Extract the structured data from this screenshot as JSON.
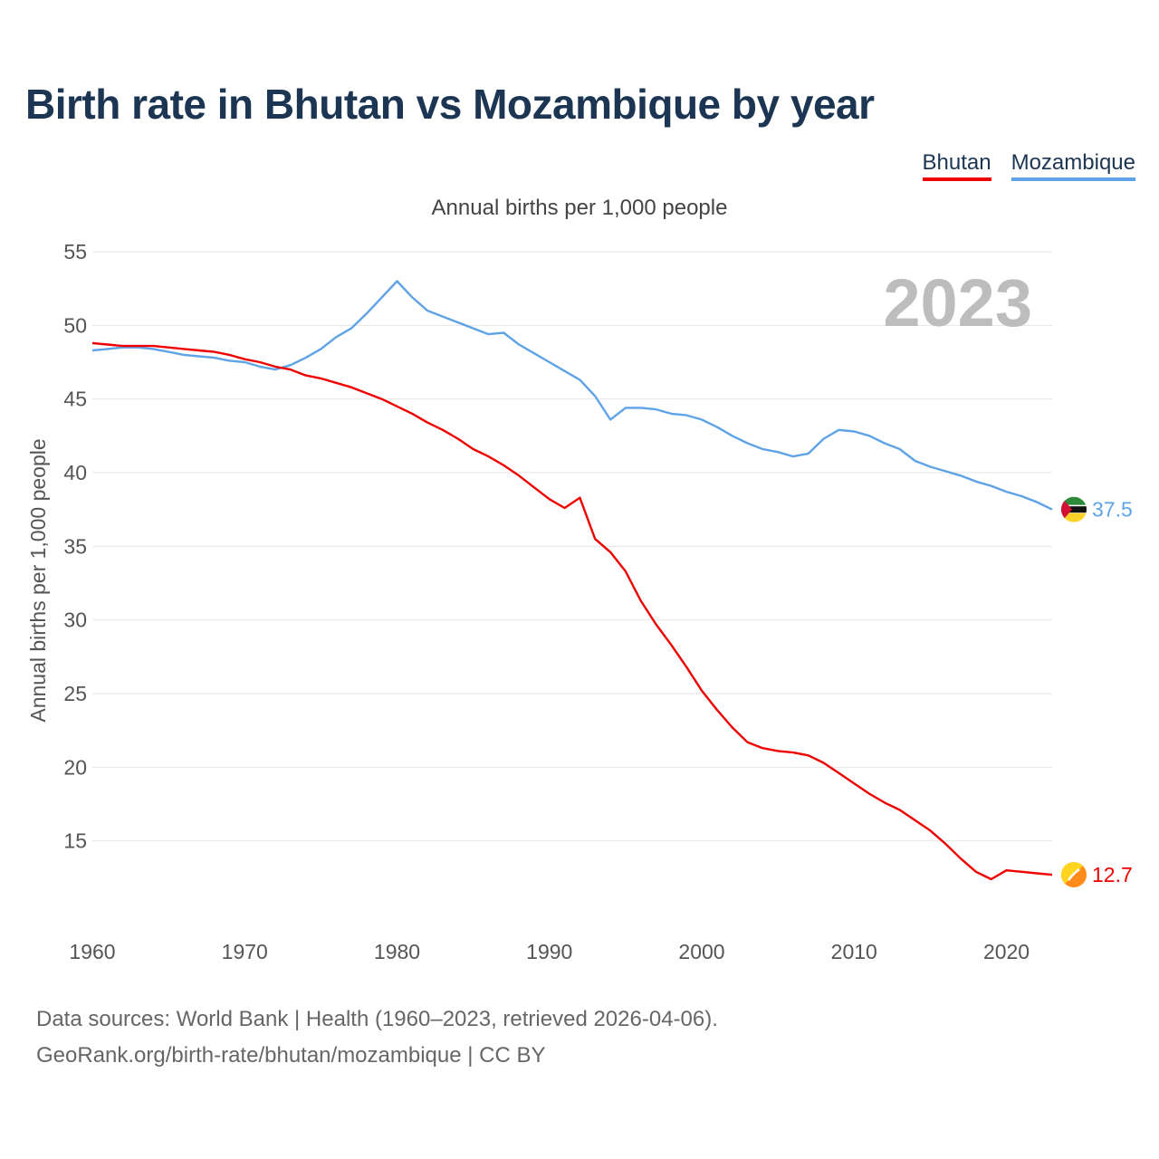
{
  "title": "Birth rate in Bhutan vs Mozambique by year",
  "subtitle": "Annual births per 1,000 people",
  "source": {
    "line1": "Data sources: World Bank | Health (1960–2023, retrieved 2026-04-06).",
    "line2": "GeoRank.org/birth-rate/bhutan/mozambique | CC BY"
  },
  "chart_data": {
    "type": "line",
    "title": "Birth rate in Bhutan vs Mozambique by year",
    "subtitle": "Annual births per 1,000 people",
    "ylabel": "Annual births per 1,000 people",
    "xlabel": "",
    "xlim": [
      1960,
      2023
    ],
    "ylim": [
      10,
      55
    ],
    "yticks": [
      15,
      20,
      25,
      30,
      35,
      40,
      45,
      50,
      55
    ],
    "xticks": [
      1960,
      1970,
      1980,
      1990,
      2000,
      2010,
      2020
    ],
    "year_overlay": "2023",
    "grid": true,
    "legend_position": "top-right",
    "x": [
      1960,
      1961,
      1962,
      1963,
      1964,
      1965,
      1966,
      1967,
      1968,
      1969,
      1970,
      1971,
      1972,
      1973,
      1974,
      1975,
      1976,
      1977,
      1978,
      1979,
      1980,
      1981,
      1982,
      1983,
      1984,
      1985,
      1986,
      1987,
      1988,
      1989,
      1990,
      1991,
      1992,
      1993,
      1994,
      1995,
      1996,
      1997,
      1998,
      1999,
      2000,
      2001,
      2002,
      2003,
      2004,
      2005,
      2006,
      2007,
      2008,
      2009,
      2010,
      2011,
      2012,
      2013,
      2014,
      2015,
      2016,
      2017,
      2018,
      2019,
      2020,
      2021,
      2022,
      2023
    ],
    "series": [
      {
        "name": "Bhutan",
        "color": "#ee0000",
        "end_label": "12.7",
        "values": [
          48.8,
          48.7,
          48.6,
          48.6,
          48.6,
          48.5,
          48.4,
          48.3,
          48.2,
          48.0,
          47.7,
          47.5,
          47.2,
          47.0,
          46.6,
          46.4,
          46.1,
          45.8,
          45.4,
          45.0,
          44.5,
          44.0,
          43.4,
          42.9,
          42.3,
          41.6,
          41.1,
          40.5,
          39.8,
          39.0,
          38.2,
          37.6,
          38.3,
          35.5,
          34.6,
          33.3,
          31.3,
          29.7,
          28.3,
          26.8,
          25.2,
          23.9,
          22.7,
          21.7,
          21.3,
          21.1,
          21.0,
          20.8,
          20.3,
          19.6,
          18.9,
          18.2,
          17.6,
          17.1,
          16.4,
          15.7,
          14.8,
          13.8,
          12.9,
          12.4,
          13.0,
          12.9,
          12.8,
          12.7
        ]
      },
      {
        "name": "Mozambique",
        "color": "#5ea3e6",
        "end_label": "37.5",
        "values": [
          48.3,
          48.4,
          48.5,
          48.5,
          48.4,
          48.2,
          48.0,
          47.9,
          47.8,
          47.6,
          47.5,
          47.2,
          47.0,
          47.3,
          47.8,
          48.4,
          49.2,
          49.8,
          50.8,
          51.9,
          53.0,
          51.9,
          51.0,
          50.6,
          50.2,
          49.8,
          49.4,
          49.5,
          48.7,
          48.1,
          47.5,
          46.9,
          46.3,
          45.2,
          43.6,
          44.4,
          44.4,
          44.3,
          44.0,
          43.9,
          43.6,
          43.1,
          42.5,
          42.0,
          41.6,
          41.4,
          41.1,
          41.3,
          42.3,
          42.9,
          42.8,
          42.5,
          42.0,
          41.6,
          40.8,
          40.4,
          40.1,
          39.8,
          39.4,
          39.1,
          38.7,
          38.4,
          38.0,
          37.5
        ]
      }
    ]
  }
}
